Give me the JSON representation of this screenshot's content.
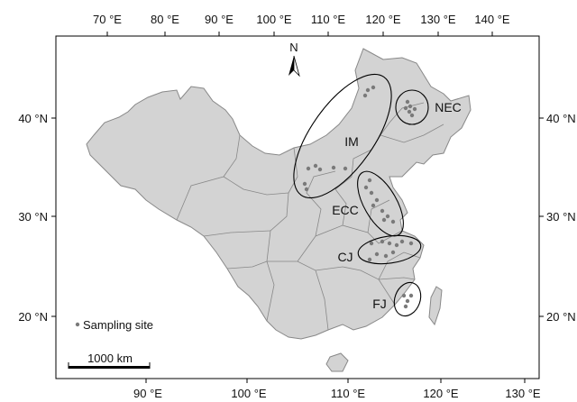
{
  "top_axis": {
    "ticks": [
      "70 °E",
      "80 °E",
      "90 °E",
      "100 °E",
      "110 °E",
      "120 °E",
      "130 °E",
      "140 °E"
    ]
  },
  "bottom_axis": {
    "ticks": [
      "90 °E",
      "100 °E",
      "110 °E",
      "120 °E",
      "130 °E"
    ]
  },
  "left_axis": {
    "ticks": [
      "40 °N",
      "30 °N",
      "20 °N"
    ]
  },
  "right_axis": {
    "ticks": [
      "40 °N",
      "30 °N",
      "20 °N"
    ]
  },
  "north_arrow": {
    "label": "N"
  },
  "regions": [
    {
      "id": "IM",
      "label": "IM"
    },
    {
      "id": "NEC",
      "label": "NEC"
    },
    {
      "id": "ECC",
      "label": "ECC"
    },
    {
      "id": "CJ",
      "label": "CJ"
    },
    {
      "id": "FJ",
      "label": "FJ"
    }
  ],
  "legend": {
    "label": "Sampling site"
  },
  "scale_bar": {
    "label": "1000 km"
  },
  "colors": {
    "land": "#d3d3d3",
    "border": "#888888",
    "site": "#7a7a7a",
    "frame": "#000000"
  }
}
